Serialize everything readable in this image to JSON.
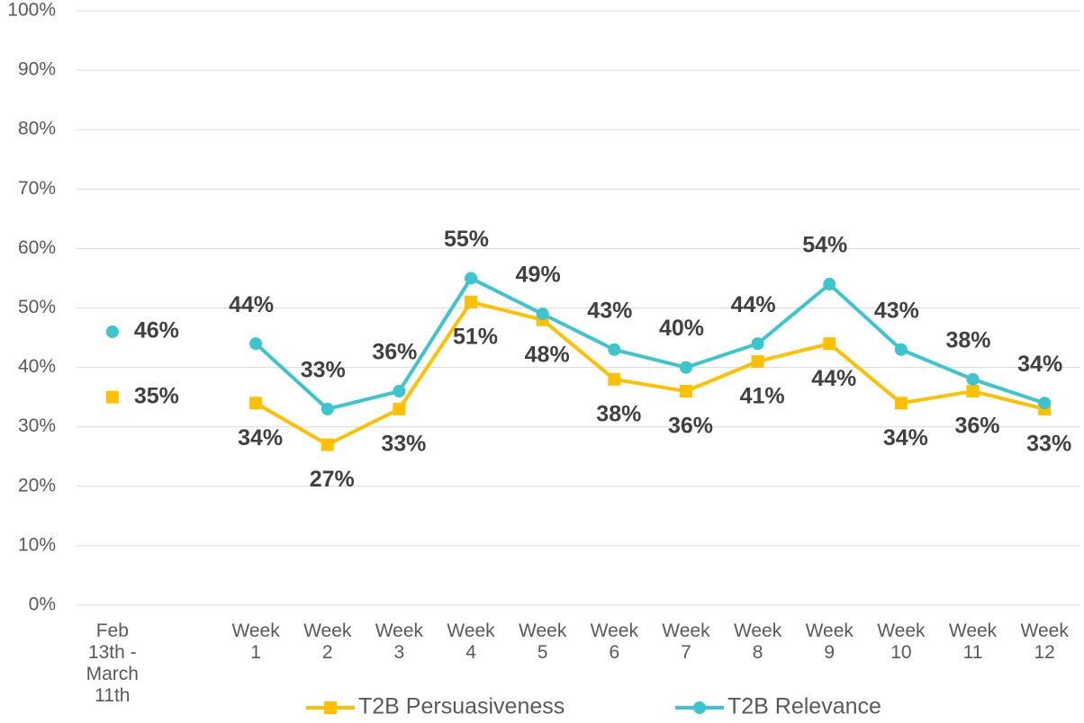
{
  "chart_data": {
    "type": "line",
    "categories": [
      "Feb 13th - March 11th",
      null,
      "Week 1",
      "Week 2",
      "Week 3",
      "Week 4",
      "Week 5",
      "Week 6",
      "Week 7",
      "Week 8",
      "Week 9",
      "Week 10",
      "Week 11",
      "Week 12"
    ],
    "series": [
      {
        "name": "T2B Persuasiveness",
        "color": "#FFC000",
        "marker": "square",
        "values": [
          35,
          null,
          34,
          27,
          33,
          51,
          48,
          38,
          36,
          41,
          44,
          34,
          36,
          33
        ],
        "value_labels": [
          "35%",
          null,
          "34%",
          "27%",
          "33%",
          "51%",
          "48%",
          "38%",
          "36%",
          "41%",
          "44%",
          "34%",
          "36%",
          "33%"
        ]
      },
      {
        "name": "T2B Relevance",
        "color": "#3CC5CF",
        "marker": "circle",
        "values": [
          46,
          null,
          44,
          33,
          36,
          55,
          49,
          43,
          40,
          44,
          54,
          43,
          38,
          34
        ],
        "value_labels": [
          "46%",
          null,
          "44%",
          "33%",
          "36%",
          "55%",
          "49%",
          "43%",
          "40%",
          "44%",
          "54%",
          "43%",
          "38%",
          "34%"
        ]
      }
    ],
    "ylim": [
      0,
      100
    ],
    "yticks": [
      {
        "value": 0,
        "label": "0%"
      },
      {
        "value": 10,
        "label": "10%"
      },
      {
        "value": 20,
        "label": "20%"
      },
      {
        "value": 30,
        "label": "30%"
      },
      {
        "value": 40,
        "label": "40%"
      },
      {
        "value": 50,
        "label": "50%"
      },
      {
        "value": 60,
        "label": "60%"
      },
      {
        "value": 70,
        "label": "70%"
      },
      {
        "value": 80,
        "label": "80%"
      },
      {
        "value": 90,
        "label": "90%"
      },
      {
        "value": 100,
        "label": "100%"
      }
    ],
    "grid": true,
    "legend": "bottom"
  }
}
